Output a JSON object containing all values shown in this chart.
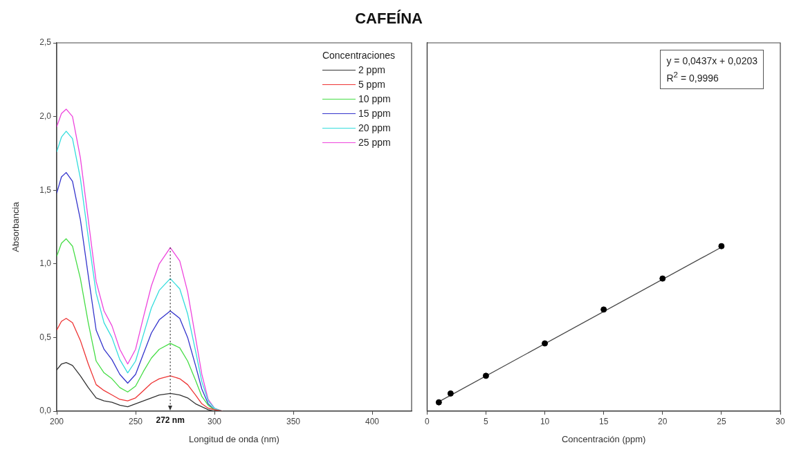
{
  "chart_data": [
    {
      "type": "line",
      "title": "CAFEÍNA",
      "xlabel": "Longitud de onda (nm)",
      "ylabel": "Absorbancia",
      "legend_title": "Concentraciones",
      "legend": "top right",
      "marker": "none",
      "grid": false,
      "x": [
        200,
        203,
        206,
        210,
        215,
        220,
        225,
        230,
        235,
        240,
        245,
        250,
        255,
        260,
        265,
        272,
        278,
        283,
        288,
        292,
        296,
        300,
        305
      ],
      "series": [
        {
          "name": "2 ppm",
          "color": "#333333",
          "values": [
            0.28,
            0.32,
            0.33,
            0.31,
            0.24,
            0.16,
            0.09,
            0.07,
            0.06,
            0.04,
            0.03,
            0.05,
            0.07,
            0.09,
            0.11,
            0.12,
            0.11,
            0.09,
            0.05,
            0.03,
            0.01,
            0,
            0
          ]
        },
        {
          "name": "5 ppm",
          "color": "#ee3333",
          "values": [
            0.55,
            0.61,
            0.63,
            0.6,
            0.48,
            0.32,
            0.18,
            0.14,
            0.11,
            0.08,
            0.07,
            0.09,
            0.14,
            0.19,
            0.22,
            0.24,
            0.22,
            0.18,
            0.11,
            0.05,
            0.02,
            0.01,
            0
          ]
        },
        {
          "name": "10 ppm",
          "color": "#44dd44",
          "values": [
            1.05,
            1.14,
            1.17,
            1.12,
            0.9,
            0.6,
            0.34,
            0.26,
            0.22,
            0.16,
            0.13,
            0.17,
            0.27,
            0.36,
            0.42,
            0.46,
            0.43,
            0.34,
            0.21,
            0.1,
            0.04,
            0.01,
            0
          ]
        },
        {
          "name": "15 ppm",
          "color": "#3333cc",
          "values": [
            1.48,
            1.59,
            1.62,
            1.56,
            1.3,
            0.92,
            0.55,
            0.42,
            0.35,
            0.25,
            0.19,
            0.25,
            0.39,
            0.53,
            0.62,
            0.68,
            0.63,
            0.5,
            0.31,
            0.15,
            0.05,
            0.01,
            0
          ]
        },
        {
          "name": "20 ppm",
          "color": "#33dddd",
          "values": [
            1.76,
            1.86,
            1.9,
            1.85,
            1.58,
            1.18,
            0.8,
            0.6,
            0.5,
            0.35,
            0.26,
            0.34,
            0.52,
            0.7,
            0.82,
            0.9,
            0.83,
            0.66,
            0.41,
            0.2,
            0.07,
            0.02,
            0
          ]
        },
        {
          "name": "25 ppm",
          "color": "#ee44dd",
          "values": [
            1.93,
            2.02,
            2.05,
            2.0,
            1.72,
            1.3,
            0.88,
            0.68,
            0.58,
            0.42,
            0.32,
            0.42,
            0.64,
            0.85,
            1.0,
            1.11,
            1.02,
            0.81,
            0.5,
            0.25,
            0.08,
            0.02,
            0
          ]
        }
      ],
      "xlim": [
        200,
        425
      ],
      "xticks": [
        200,
        250,
        300,
        350,
        400
      ],
      "ylim": [
        0,
        2.5
      ],
      "yticks": [
        {
          "value": 0,
          "label": "0,0"
        },
        {
          "value": 0.5,
          "label": "0,5"
        },
        {
          "value": 1,
          "label": "1,0"
        },
        {
          "value": 1.5,
          "label": "1,5"
        },
        {
          "value": 2,
          "label": "2,0"
        },
        {
          "value": 2.5,
          "label": "2,5"
        }
      ],
      "ref_lines": [
        {
          "axis": "x",
          "value": 272,
          "label": "272 nm",
          "line_style": "dotted",
          "color": "#333333"
        }
      ]
    },
    {
      "type": "scatter",
      "xlabel": "Concentración (ppm)",
      "grid": false,
      "legend": false,
      "tick_labels": "x",
      "annotations": [
        "y = 0,0437x + 0,0203",
        "R$^{2}$ = 0,9996"
      ],
      "series": [
        {
          "marker": "circle",
          "color": "#000000",
          "x": [
            1,
            2,
            5,
            10,
            15,
            20,
            25
          ],
          "values": [
            0.06,
            0.12,
            0.24,
            0.46,
            0.69,
            0.9,
            1.12
          ]
        },
        {
          "type": "line",
          "marker": "none",
          "color": "#444444",
          "x": [
            1,
            25
          ],
          "values": [
            0.064,
            1.113
          ]
        }
      ],
      "xlim": [
        0,
        30
      ],
      "xticks": [
        0,
        5,
        10,
        15,
        20,
        25,
        30
      ],
      "ylim": [
        0,
        2.5
      ]
    }
  ]
}
